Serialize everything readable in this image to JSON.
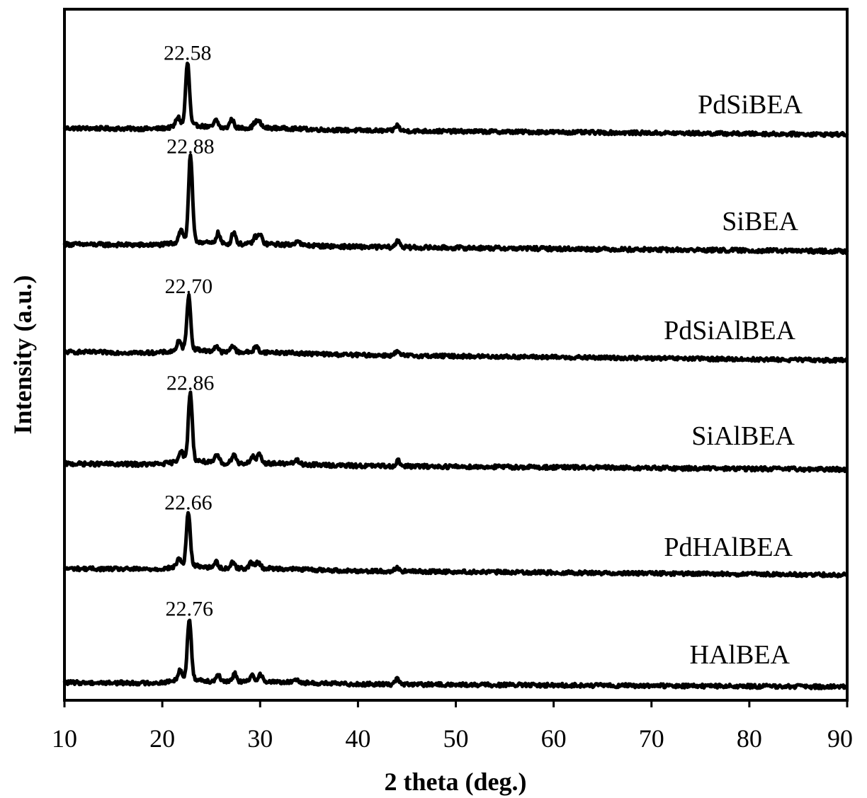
{
  "chart_data": {
    "type": "line",
    "xlabel": "2 theta (deg.)",
    "ylabel": "Intensity (a.u.)",
    "xlim": [
      10,
      90
    ],
    "x_ticks": [
      10,
      20,
      30,
      40,
      50,
      60,
      70,
      80,
      90
    ],
    "x_tick_labels": [
      "10",
      "20",
      "30",
      "40",
      "50",
      "60",
      "70",
      "80",
      "90"
    ],
    "y_ticks_labeled": false,
    "line_color": "#000000",
    "series": [
      {
        "name": "PdSiBEA",
        "peak_label": "22.58",
        "peak_x": 22.58,
        "baseline": 0.1,
        "peak_height": 1.0,
        "minor_peaks": [
          [
            21.6,
            0.15
          ],
          [
            25.5,
            0.12
          ],
          [
            27.1,
            0.14
          ],
          [
            29.5,
            0.08
          ],
          [
            29.9,
            0.09
          ],
          [
            44.0,
            0.09
          ]
        ]
      },
      {
        "name": "SiBEA",
        "peak_label": "22.88",
        "peak_x": 22.88,
        "baseline": 0.1,
        "peak_height": 1.25,
        "minor_peaks": [
          [
            21.9,
            0.18
          ],
          [
            25.7,
            0.16
          ],
          [
            27.3,
            0.18
          ],
          [
            29.5,
            0.1
          ],
          [
            30.0,
            0.13
          ],
          [
            33.8,
            0.07
          ],
          [
            44.1,
            0.1
          ]
        ]
      },
      {
        "name": "PdSiAlBEA",
        "peak_label": "22.70",
        "peak_x": 22.7,
        "baseline": 0.1,
        "peak_height": 0.85,
        "minor_peaks": [
          [
            21.7,
            0.14
          ],
          [
            25.5,
            0.1
          ],
          [
            27.2,
            0.11
          ],
          [
            29.6,
            0.09
          ],
          [
            44.0,
            0.06
          ]
        ]
      },
      {
        "name": "SiAlBEA",
        "peak_label": "22.86",
        "peak_x": 22.86,
        "baseline": 0.1,
        "peak_height": 1.0,
        "minor_peaks": [
          [
            21.9,
            0.16
          ],
          [
            25.6,
            0.12
          ],
          [
            27.3,
            0.14
          ],
          [
            29.2,
            0.1
          ],
          [
            29.9,
            0.12
          ],
          [
            33.7,
            0.06
          ],
          [
            44.1,
            0.08
          ]
        ]
      },
      {
        "name": "PdHAlBEA",
        "peak_label": "22.66",
        "peak_x": 22.66,
        "baseline": 0.1,
        "peak_height": 0.85,
        "minor_peaks": [
          [
            21.7,
            0.13
          ],
          [
            25.5,
            0.1
          ],
          [
            27.2,
            0.1
          ],
          [
            29.1,
            0.09
          ],
          [
            29.8,
            0.1
          ],
          [
            44.0,
            0.06
          ]
        ]
      },
      {
        "name": "HAlBEA",
        "peak_label": "22.76",
        "peak_x": 22.76,
        "baseline": 0.1,
        "peak_height": 0.95,
        "minor_peaks": [
          [
            21.8,
            0.16
          ],
          [
            25.7,
            0.12
          ],
          [
            27.4,
            0.13
          ],
          [
            29.2,
            0.1
          ],
          [
            30.0,
            0.12
          ],
          [
            33.7,
            0.06
          ],
          [
            44.0,
            0.09
          ]
        ]
      }
    ]
  }
}
